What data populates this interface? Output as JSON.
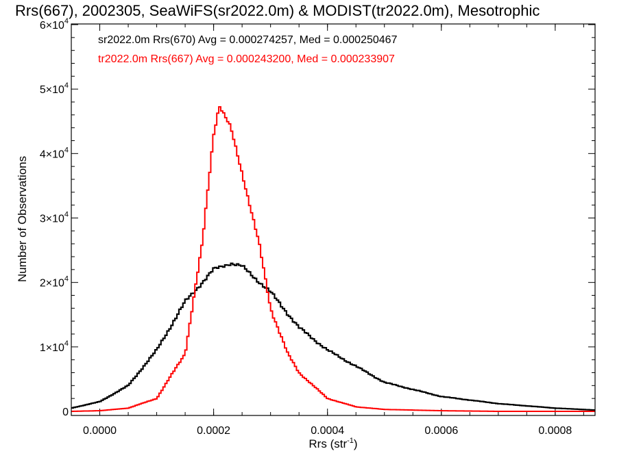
{
  "chart_data": {
    "type": "histogram",
    "title": "Rrs(667), 2002305, SeaWiFS(sr2022.0m) & MODIST(tr2022.0m), Mesotrophic",
    "xlabel": "Rrs (str",
    "xlabel_sup": "-1",
    "xlabel_close": ")",
    "ylabel": "Number of Observations",
    "xlim": [
      -5e-05,
      0.00087
    ],
    "ylim": [
      0,
      60000
    ],
    "x_ticks": [
      {
        "value": 0.0,
        "label": "0.0000"
      },
      {
        "value": 0.0002,
        "label": "0.0002"
      },
      {
        "value": 0.0004,
        "label": "0.0004"
      },
      {
        "value": 0.0006,
        "label": "0.0006"
      },
      {
        "value": 0.0008,
        "label": "0.0008"
      }
    ],
    "y_ticks": [
      {
        "value": 0,
        "base": "0",
        "exp": ""
      },
      {
        "value": 10000,
        "base": "1×10",
        "exp": "4"
      },
      {
        "value": 20000,
        "base": "2×10",
        "exp": "4"
      },
      {
        "value": 30000,
        "base": "3×10",
        "exp": "4"
      },
      {
        "value": 40000,
        "base": "4×10",
        "exp": "4"
      },
      {
        "value": 50000,
        "base": "5×10",
        "exp": "4"
      },
      {
        "value": 60000,
        "base": "6×10",
        "exp": "4"
      }
    ],
    "legend_placement": "top-left",
    "series": [
      {
        "label": "sr2022.0m Rrs(670) Avg = 0.000274257, Med = 0.000250467",
        "color": "#000000",
        "shape": "skewed-wide",
        "peak_x": 0.00023,
        "peak_y": 23000,
        "x": [
          -5e-05,
          0.0,
          5e-05,
          0.0001,
          0.00015,
          0.0002,
          0.00023,
          0.00025,
          0.0003,
          0.00035,
          0.0004,
          0.00045,
          0.0005,
          0.0006,
          0.0007,
          0.0008,
          0.00087
        ],
        "y": [
          500,
          1500,
          4000,
          9500,
          17000,
          22000,
          23000,
          22500,
          18500,
          13000,
          9500,
          7000,
          4500,
          2300,
          1200,
          500,
          200
        ]
      },
      {
        "label": "tr2022.0m Rrs(667) Avg = 0.000243200, Med = 0.000233907",
        "color": "#ff0000",
        "shape": "peaked",
        "peak_x": 0.00021,
        "peak_y": 47500,
        "x": [
          -5e-05,
          0.0,
          5e-05,
          0.0001,
          0.00015,
          0.00018,
          0.0002,
          0.00021,
          0.00023,
          0.00025,
          0.00028,
          0.0003,
          0.00033,
          0.00035,
          0.0004,
          0.00045,
          0.0005,
          0.0006,
          0.0007,
          0.0008,
          0.00087
        ],
        "y": [
          0,
          100,
          500,
          2000,
          9000,
          26000,
          43000,
          47500,
          44000,
          37000,
          26000,
          16000,
          9000,
          6000,
          2000,
          700,
          300,
          100,
          0,
          0,
          0
        ]
      }
    ],
    "grid": false
  }
}
